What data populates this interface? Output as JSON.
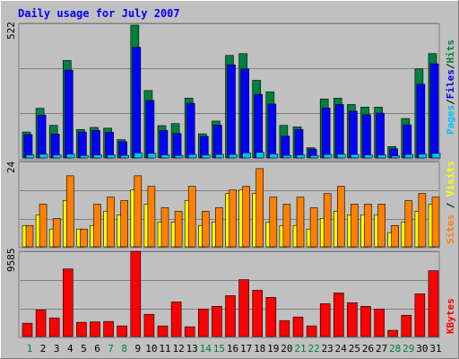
{
  "chart_data": [
    {
      "type": "bar",
      "panel": "top",
      "title": "Daily usage for July 2007",
      "ylabel_max": "522",
      "legend": [
        "Pages",
        "Files",
        "Hits"
      ],
      "ylim": [
        0,
        522
      ],
      "categories": [
        "1",
        "2",
        "3",
        "4",
        "5",
        "6",
        "7",
        "8",
        "9",
        "10",
        "11",
        "12",
        "13",
        "14",
        "15",
        "16",
        "17",
        "18",
        "19",
        "20",
        "21",
        "22",
        "23",
        "24",
        "25",
        "26",
        "27",
        "28",
        "29",
        "30",
        "31"
      ],
      "series": [
        {
          "name": "Hits",
          "values": [
            102,
            195,
            128,
            383,
            112,
            120,
            117,
            72,
            522,
            265,
            127,
            135,
            235,
            95,
            145,
            403,
            410,
            305,
            260,
            128,
            122,
            40,
            232,
            235,
            210,
            200,
            200,
            45,
            155,
            350,
            410
          ]
        },
        {
          "name": "Files",
          "values": [
            92,
            168,
            94,
            345,
            102,
            108,
            101,
            64,
            435,
            226,
            108,
            96,
            215,
            85,
            129,
            366,
            350,
            250,
            212,
            86,
            112,
            35,
            196,
            210,
            184,
            170,
            176,
            36,
            130,
            290,
            370
          ]
        },
        {
          "name": "Pages",
          "values": [
            12,
            15,
            12,
            15,
            10,
            12,
            12,
            10,
            20,
            18,
            12,
            10,
            14,
            12,
            14,
            14,
            20,
            22,
            16,
            10,
            12,
            10,
            14,
            15,
            14,
            12,
            12,
            8,
            14,
            15,
            18
          ]
        }
      ],
      "colors": {
        "Hits": "#008040",
        "Files": "#0000ff",
        "Pages": "#00c0ff"
      }
    },
    {
      "type": "bar",
      "panel": "middle",
      "ylabel_max": "24",
      "legend": [
        "Sites",
        "Visits"
      ],
      "ylim": [
        0,
        24
      ],
      "categories": [
        "1",
        "2",
        "3",
        "4",
        "5",
        "6",
        "7",
        "8",
        "9",
        "10",
        "11",
        "12",
        "13",
        "14",
        "15",
        "16",
        "17",
        "18",
        "19",
        "20",
        "21",
        "22",
        "23",
        "24",
        "25",
        "26",
        "27",
        "28",
        "29",
        "30",
        "31"
      ],
      "series": [
        {
          "name": "Visits",
          "values": [
            6,
            12,
            8,
            20,
            5,
            12,
            14,
            13,
            20,
            17,
            11,
            10,
            17,
            10,
            11,
            16,
            17,
            22,
            14,
            12,
            14,
            11,
            15,
            17,
            12,
            12,
            12,
            6,
            13,
            15,
            14
          ]
        },
        {
          "name": "Sites",
          "values": [
            6,
            9,
            5,
            13,
            5,
            6,
            10,
            9,
            16,
            12,
            7,
            7,
            13,
            6,
            7,
            15,
            16,
            15,
            7,
            6,
            6,
            5,
            8,
            10,
            9,
            9,
            9,
            4,
            7,
            10,
            12
          ]
        }
      ],
      "colors": {
        "Visits": "#ff8000",
        "Sites": "#ffff00"
      }
    },
    {
      "type": "bar",
      "panel": "bottom",
      "ylabel_max": "9585",
      "legend": [
        "KBytes"
      ],
      "ylim": [
        0,
        9585
      ],
      "categories": [
        "1",
        "2",
        "3",
        "4",
        "5",
        "6",
        "7",
        "8",
        "9",
        "10",
        "11",
        "12",
        "13",
        "14",
        "15",
        "16",
        "17",
        "18",
        "19",
        "20",
        "21",
        "22",
        "23",
        "24",
        "25",
        "26",
        "27",
        "28",
        "29",
        "30",
        "31"
      ],
      "weekend_days": [
        "1",
        "7",
        "8",
        "14",
        "15",
        "21",
        "22",
        "28",
        "29"
      ],
      "series": [
        {
          "name": "KBytes",
          "values": [
            1500,
            3000,
            2100,
            7600,
            1600,
            1650,
            1700,
            1200,
            9585,
            2500,
            1200,
            3900,
            1100,
            3100,
            3400,
            4600,
            6400,
            5200,
            4400,
            1800,
            2200,
            1200,
            3700,
            4900,
            3800,
            3400,
            3100,
            700,
            2400,
            4800,
            7400
          ]
        }
      ],
      "colors": {
        "KBytes": "#ff0000"
      }
    }
  ]
}
